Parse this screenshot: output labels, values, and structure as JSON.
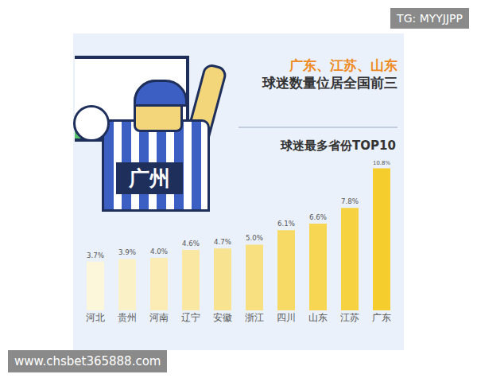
{
  "chart_data": {
    "type": "bar",
    "title": "广东、江苏、山东\n球迷数量位居全国前三",
    "subtitle": "球迷最多省份TOP10",
    "categories": [
      "河北",
      "贵州",
      "河南",
      "辽宁",
      "安徽",
      "浙江",
      "四川",
      "山东",
      "江苏",
      "广东"
    ],
    "values": [
      3.7,
      3.9,
      4.0,
      4.6,
      4.7,
      5.0,
      6.1,
      6.6,
      7.8,
      10.8
    ],
    "value_labels": [
      "3.7%",
      "3.9%",
      "4.0%",
      "4.6%",
      "4.7%",
      "5.0%",
      "6.1%",
      "6.6%",
      "7.8%",
      "10.8%"
    ],
    "colors": [
      "#fcf6da",
      "#fbf1c6",
      "#faecb4",
      "#f9e7a2",
      "#f8e391",
      "#f8df7f",
      "#f7da66",
      "#f6d652",
      "#f6d240",
      "#f5cd2c"
    ],
    "ylim": [
      0,
      11.5
    ],
    "data_labels": true,
    "tick_labels": "x",
    "grid": false,
    "annotations": [
      "广州",
      "TG: MYYJJPP",
      "www.chsbet365888.com"
    ]
  }
}
